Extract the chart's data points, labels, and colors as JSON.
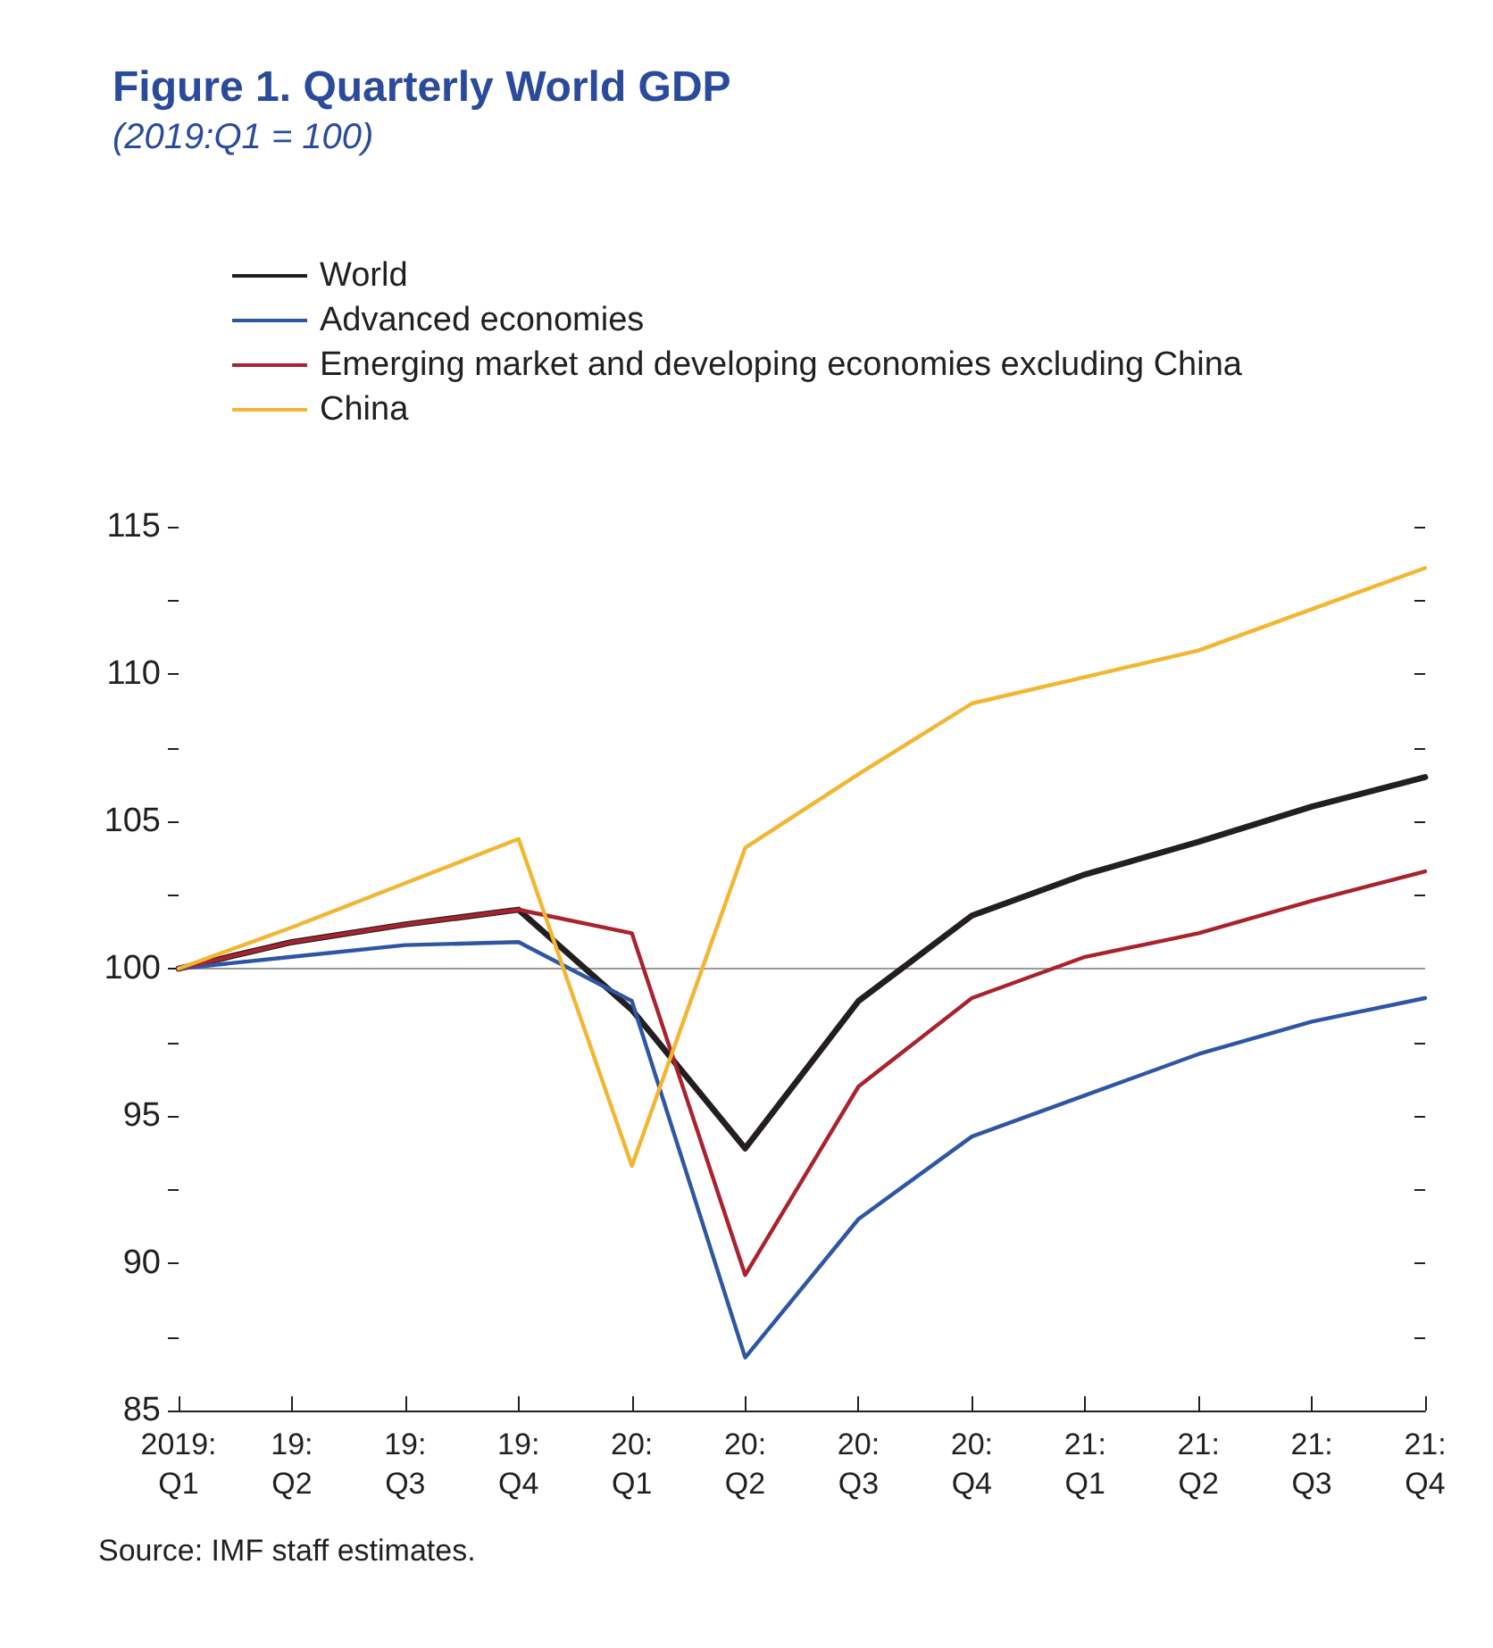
{
  "chart_data": {
    "type": "line",
    "title": "Figure 1. Quarterly World GDP",
    "subtitle": "(2019:Q1 = 100)",
    "categories": [
      "2019:\nQ1",
      "19:\nQ2",
      "19:\nQ3",
      "19:\nQ4",
      "20:\nQ1",
      "20:\nQ2",
      "20:\nQ3",
      "20:\nQ4",
      "21:\nQ1",
      "21:\nQ2",
      "21:\nQ3",
      "21:\nQ4"
    ],
    "series": [
      {
        "name": "World",
        "color": "#231f20",
        "values": [
          100,
          100.9,
          101.5,
          102.0,
          98.6,
          93.9,
          98.9,
          101.8,
          103.2,
          104.3,
          105.5,
          106.5
        ]
      },
      {
        "name": "Advanced economies",
        "color": "#2f56a5",
        "values": [
          100,
          100.4,
          100.8,
          100.9,
          98.9,
          86.8,
          91.5,
          94.3,
          95.7,
          97.1,
          98.2,
          99.0
        ]
      },
      {
        "name": "Emerging market and developing economies excluding China",
        "color": "#a8232e",
        "values": [
          100,
          100.9,
          101.5,
          102.0,
          101.2,
          89.6,
          96.0,
          99.0,
          100.4,
          101.2,
          102.3,
          103.3
        ]
      },
      {
        "name": "China",
        "color": "#f2b632",
        "values": [
          100,
          101.4,
          102.9,
          104.4,
          93.3,
          104.1,
          106.6,
          109.0,
          109.9,
          110.8,
          112.2,
          113.6
        ]
      }
    ],
    "ylim": [
      85,
      115
    ],
    "yticks": [
      85,
      {
        "value": 87.5,
        "label": null
      },
      90,
      {
        "value": 92.5,
        "label": null
      },
      95,
      {
        "value": 97.5,
        "label": null
      },
      100,
      {
        "value": 102.5,
        "label": null
      },
      105,
      {
        "value": 107.5,
        "label": null
      },
      110,
      {
        "value": 112.5,
        "label": null
      },
      115
    ],
    "ref_lines": [
      {
        "axis": "y",
        "value": 100,
        "color": "#999999"
      }
    ],
    "annotations": [
      "Source: IMF staff estimates."
    ],
    "legend": "top left",
    "grid": false,
    "marker": "none",
    "line_style": "solid"
  }
}
